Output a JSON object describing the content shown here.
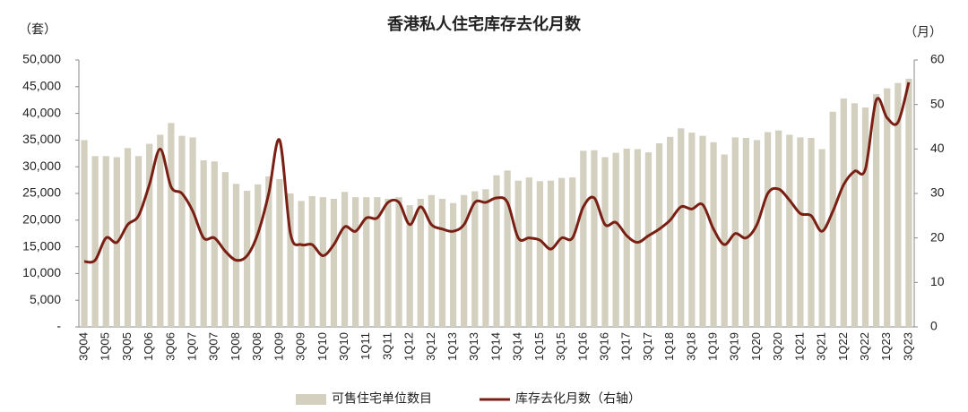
{
  "chart_data": {
    "type": "bar-line",
    "title": "香港私人住宅库存去化月数",
    "y_unit": "（套）",
    "y2_unit": "（月）",
    "categories": [
      "3Q04",
      null,
      "1Q05",
      null,
      "3Q05",
      null,
      "1Q06",
      null,
      "3Q06",
      null,
      "1Q07",
      null,
      "3Q07",
      null,
      "1Q08",
      null,
      "3Q08",
      null,
      "1Q09",
      null,
      "3Q09",
      null,
      "1Q10",
      null,
      "3Q10",
      null,
      "1Q11",
      null,
      "3Q11",
      null,
      "1Q12",
      null,
      "3Q12",
      null,
      "1Q13",
      null,
      "3Q13",
      null,
      "1Q14",
      null,
      "3Q14",
      null,
      "1Q15",
      null,
      "3Q15",
      null,
      "1Q16",
      null,
      "3Q16",
      null,
      "1Q17",
      null,
      "3Q17",
      null,
      "1Q18",
      null,
      "3Q18",
      null,
      "1Q19",
      null,
      "3Q19",
      null,
      "1Q20",
      null,
      "3Q20",
      null,
      "1Q21",
      null,
      "3Q21",
      null,
      "1Q22",
      null,
      "3Q22",
      null,
      "1Q23",
      null,
      "3Q23"
    ],
    "series": [
      {
        "name": "可售住宅单位数目",
        "kind": "bar",
        "color": "#d4d0c0",
        "values": [
          35000,
          32000,
          32000,
          31800,
          33500,
          32000,
          34300,
          36000,
          38200,
          35800,
          35500,
          31200,
          31000,
          29000,
          26800,
          25500,
          26700,
          28200,
          27700,
          25000,
          23600,
          24500,
          24300,
          24000,
          25300,
          24300,
          24300,
          24300,
          24000,
          24300,
          22800,
          24000,
          24700,
          24000,
          23200,
          24700,
          25400,
          25800,
          28400,
          29300,
          27400,
          28000,
          27300,
          27400,
          27900,
          28000,
          33000,
          33100,
          31800,
          32600,
          33400,
          33300,
          32700,
          34400,
          35600,
          37200,
          36400,
          35800,
          34600,
          32300,
          35500,
          35400,
          35000,
          36500,
          36800,
          36000,
          35500,
          35400,
          33300,
          40300,
          42800,
          41900,
          41100,
          43600,
          44700,
          45700,
          46500
        ]
      },
      {
        "name": "库存去化月数（右轴）",
        "kind": "line",
        "axis": "y2",
        "color": "#7a1f14",
        "values": [
          14.7,
          15,
          20,
          19,
          23,
          25,
          32,
          40,
          31.5,
          30,
          26,
          20,
          20,
          17,
          15,
          16,
          21,
          30,
          42,
          21,
          18.5,
          18.5,
          16,
          18.5,
          22.5,
          21.5,
          24.5,
          24.5,
          28,
          28,
          23,
          27,
          23,
          22,
          21.5,
          23,
          28,
          28,
          29,
          28,
          20,
          20,
          19.5,
          17.5,
          20,
          20,
          27,
          29,
          23,
          23.5,
          20.5,
          19,
          20.5,
          22,
          24,
          27,
          26.5,
          27.5,
          22,
          18.5,
          21,
          20,
          23,
          30,
          31,
          28.5,
          25.5,
          25,
          21.5,
          26,
          32,
          35,
          35.5,
          51,
          47,
          46,
          55
        ]
      }
    ],
    "ylim": [
      0,
      50000
    ],
    "yticks": [
      {
        "value": 0,
        "label": "-"
      },
      {
        "value": 5000,
        "label": "5,000"
      },
      {
        "value": 10000,
        "label": "10,000"
      },
      {
        "value": 15000,
        "label": "15,000"
      },
      {
        "value": 20000,
        "label": "20,000"
      },
      {
        "value": 25000,
        "label": "25,000"
      },
      {
        "value": 30000,
        "label": "30,000"
      },
      {
        "value": 35000,
        "label": "35,000"
      },
      {
        "value": 40000,
        "label": "40,000"
      },
      {
        "value": 45000,
        "label": "45,000"
      },
      {
        "value": 50000,
        "label": "50,000"
      }
    ],
    "y2lim": [
      0,
      60
    ],
    "y2ticks": [
      0,
      10,
      20,
      30,
      40,
      50,
      60
    ]
  }
}
